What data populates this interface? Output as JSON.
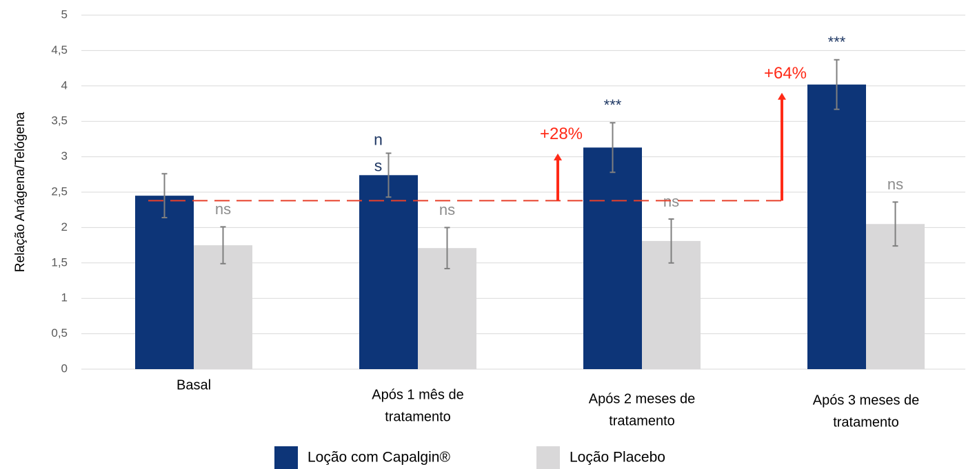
{
  "chart_data": {
    "type": "bar",
    "y_label": "Relação Anágena/Telógena",
    "categories": [
      [
        "Basal"
      ],
      [
        "Após 1 mês de",
        "tratamento"
      ],
      [
        "Após 2 meses de",
        "tratamento"
      ],
      [
        "Após 3 meses de",
        "tratamento"
      ]
    ],
    "series": [
      {
        "name": "Loção com Capalgin®",
        "color": "#0d3578",
        "label_color": "#1f3864",
        "values": [
          2.45,
          2.74,
          3.13,
          4.02
        ],
        "errors": [
          0.31,
          0.31,
          0.35,
          0.35
        ],
        "labels": [
          null,
          [
            "n",
            "s"
          ],
          [
            "***"
          ],
          [
            "***"
          ]
        ]
      },
      {
        "name": "Loção Placebo",
        "color": "#d9d8d9",
        "label_color": "#8c8c8c",
        "values": [
          1.75,
          1.71,
          1.81,
          2.05
        ],
        "errors": [
          0.26,
          0.29,
          0.31,
          0.31
        ],
        "labels": [
          [
            "ns"
          ],
          [
            "ns"
          ],
          [
            "ns"
          ],
          [
            "ns"
          ]
        ]
      }
    ],
    "reference": 2.38,
    "reference_color": "#e8402a",
    "increases": [
      null,
      null,
      {
        "label": "+28%",
        "value": 28
      },
      {
        "label": "+64%",
        "value": 64
      }
    ],
    "increase_color": "#ff2a17",
    "ylim": [
      0,
      5
    ],
    "yticks": [
      0,
      {
        "value": 0.5,
        "label": "0,5"
      },
      1,
      {
        "value": 1.5,
        "label": "1,5"
      },
      2,
      {
        "value": 2.5,
        "label": "2,5"
      },
      3,
      {
        "value": 3.5,
        "label": "3,5"
      },
      4,
      {
        "value": 4.5,
        "label": "4,5"
      },
      5
    ],
    "grid": true,
    "legend": "bottom"
  }
}
